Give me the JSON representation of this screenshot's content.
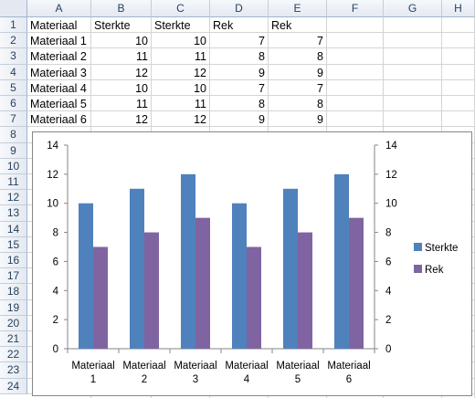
{
  "sheet": {
    "columns": [
      "A",
      "B",
      "C",
      "D",
      "E",
      "F",
      "G",
      "H"
    ],
    "rows": [
      "1",
      "2",
      "3",
      "4",
      "5",
      "6",
      "7",
      "8",
      "9",
      "10",
      "11",
      "12",
      "13",
      "14",
      "15",
      "16",
      "17",
      "18",
      "19",
      "20",
      "21",
      "22",
      "23",
      "24"
    ],
    "header_row": [
      "Materiaal",
      "Sterkte",
      "Sterkte",
      "Rek",
      "Rek"
    ],
    "data_rows": [
      [
        "Materiaal 1",
        "10",
        "10",
        "7",
        "7"
      ],
      [
        "Materiaal 2",
        "11",
        "11",
        "8",
        "8"
      ],
      [
        "Materiaal 3",
        "12",
        "12",
        "9",
        "9"
      ],
      [
        "Materiaal 4",
        "10",
        "10",
        "7",
        "7"
      ],
      [
        "Materiaal 5",
        "11",
        "11",
        "8",
        "8"
      ],
      [
        "Materiaal 6",
        "12",
        "12",
        "9",
        "9"
      ]
    ]
  },
  "chart_data": {
    "type": "bar",
    "categories": [
      [
        "Materiaal",
        "1"
      ],
      [
        "Materiaal",
        "2"
      ],
      [
        "Materiaal",
        "3"
      ],
      [
        "Materiaal",
        "4"
      ],
      [
        "Materiaal",
        "5"
      ],
      [
        "Materiaal",
        "6"
      ]
    ],
    "series": [
      {
        "name": "Sterkte",
        "values": [
          10,
          11,
          12,
          10,
          11,
          12
        ],
        "color": "#4f81bd",
        "axis": "left"
      },
      {
        "name": "Rek",
        "values": [
          7,
          8,
          9,
          7,
          8,
          9
        ],
        "color": "#8064a2",
        "axis": "right"
      }
    ],
    "ylim": [
      0,
      14
    ],
    "yticks": [
      "0",
      "2",
      "4",
      "6",
      "8",
      "10",
      "12",
      "14"
    ],
    "y2lim": [
      0,
      14
    ],
    "y2ticks": [
      "0",
      "2",
      "4",
      "6",
      "8",
      "10",
      "12",
      "14"
    ],
    "grid": false,
    "legend": "right"
  }
}
